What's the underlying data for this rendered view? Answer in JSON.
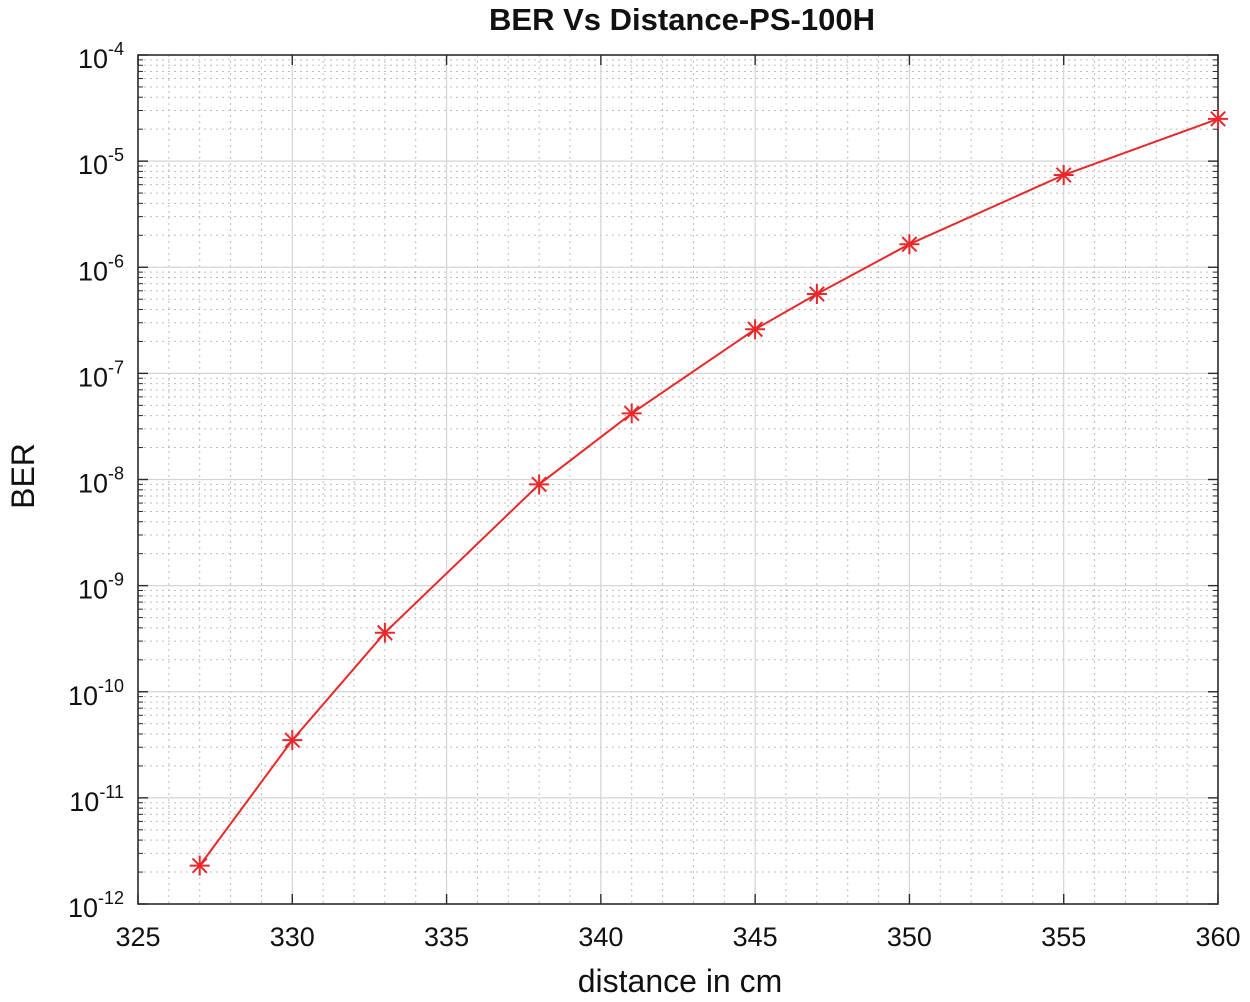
{
  "chart_data": {
    "type": "line",
    "title": "BER Vs Distance-PS-100H",
    "xlabel": "distance in cm",
    "ylabel": "BER",
    "xlim": [
      325,
      360
    ],
    "ylim": [
      1e-12,
      0.0001
    ],
    "y_scale": "log",
    "grid": "on (major and minor, dotted)",
    "x_ticks": [
      "325",
      "330",
      "335",
      "340",
      "345",
      "350",
      "355",
      "360"
    ],
    "y_ticks": [
      {
        "base": "10",
        "exp": "-12"
      },
      {
        "base": "10",
        "exp": "-11"
      },
      {
        "base": "10",
        "exp": "-10"
      },
      {
        "base": "10",
        "exp": "-9"
      },
      {
        "base": "10",
        "exp": "-8"
      },
      {
        "base": "10",
        "exp": "-7"
      },
      {
        "base": "10",
        "exp": "-6"
      },
      {
        "base": "10",
        "exp": "-5"
      },
      {
        "base": "10",
        "exp": "-4"
      }
    ],
    "series": [
      {
        "color": "#e8282a",
        "marker": "asterisk",
        "x": [
          327,
          330,
          333,
          338,
          341,
          345,
          347,
          350,
          355,
          360
        ],
        "y": [
          2.3e-12,
          3.5e-11,
          3.6e-10,
          9e-09,
          4.2e-08,
          2.6e-07,
          5.6e-07,
          1.65e-06,
          7.4e-06,
          2.5e-05
        ]
      }
    ]
  }
}
